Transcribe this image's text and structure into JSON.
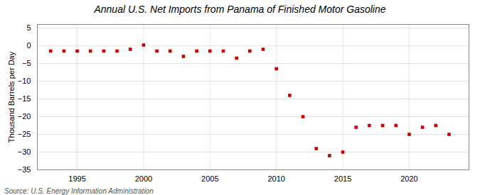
{
  "chart_data": {
    "type": "scatter",
    "title": "Annual U.S. Net Imports from Panama of Finished Motor Gasoline",
    "ylabel": "Thousand Barrels per Day",
    "source": "Source: U.S. Energy Information Administration",
    "x": [
      1993,
      1994,
      1995,
      1996,
      1997,
      1998,
      1999,
      2000,
      2001,
      2002,
      2003,
      2004,
      2005,
      2006,
      2007,
      2008,
      2009,
      2010,
      2011,
      2012,
      2013,
      2014,
      2015,
      2016,
      2017,
      2018,
      2019,
      2020,
      2021,
      2022,
      2023
    ],
    "values": [
      -1.5,
      -1.5,
      -1.5,
      -1.5,
      -1.5,
      -1.5,
      -1.0,
      0.2,
      -1.5,
      -1.5,
      -3.0,
      -1.5,
      -1.5,
      -1.5,
      -3.5,
      -1.5,
      -1.0,
      -6.5,
      -14.0,
      -20.0,
      -29.0,
      -31.0,
      -30.0,
      -23.0,
      -22.5,
      -22.5,
      -22.5,
      -25.0,
      -23.0,
      -22.5,
      -25.0
    ],
    "color": "#cc0000",
    "marker": "square",
    "xlim": [
      1992.0,
      2024.5
    ],
    "xticks": [
      1995,
      2000,
      2005,
      2010,
      2015,
      2020
    ],
    "ylim": [
      -35,
      6
    ],
    "yticks": [
      5,
      0,
      -5,
      -10,
      -15,
      -20,
      -25,
      -30,
      -35
    ],
    "grid": true
  }
}
